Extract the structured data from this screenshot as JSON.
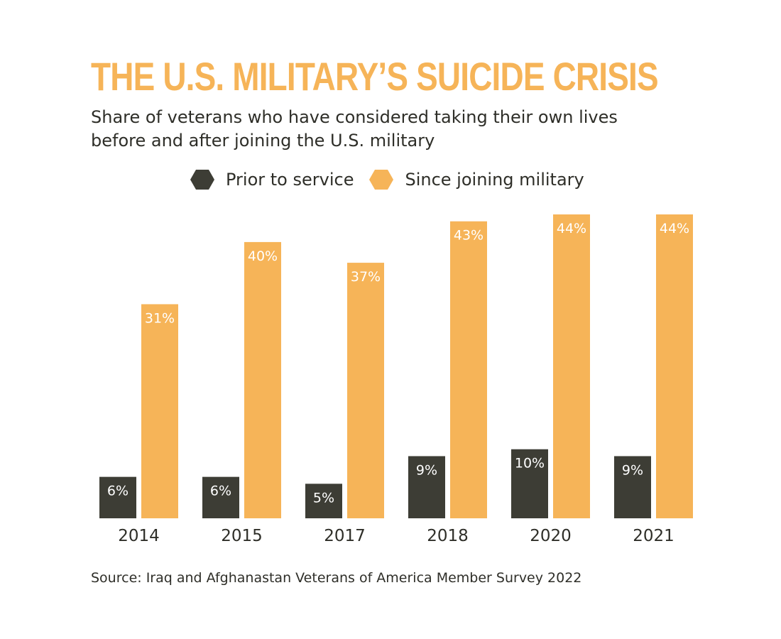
{
  "title": "THE U.S. MILITARY’S SUICIDE CRISIS",
  "subtitle": "Share of veterans who have considered taking their own lives before and after joining the U.S. military",
  "source": "Source: Iraq and Afghanastan Veterans of America Member Survey 2022",
  "colors": {
    "title": "#f6b458",
    "prior": "#3d3d35",
    "since": "#f6b458",
    "text": "#2e2e28",
    "label": "#ffffff"
  },
  "legend": [
    {
      "label": "Prior to service",
      "color": "#3d3d35",
      "icon": "hexagon"
    },
    {
      "label": "Since joining military",
      "color": "#f6b458",
      "icon": "hexagon"
    }
  ],
  "chart_data": {
    "type": "bar",
    "title": "THE U.S. MILITARY’S SUICIDE CRISIS",
    "subtitle": "Share of veterans who have considered taking their own lives before and after joining the U.S. military",
    "categories": [
      "2014",
      "2015",
      "2017",
      "2018",
      "2020",
      "2021"
    ],
    "series": [
      {
        "name": "Prior to service",
        "values": [
          6,
          6,
          5,
          9,
          10,
          9
        ],
        "labels": [
          "6%",
          "6%",
          "5%",
          "9%",
          "10%",
          "9%"
        ]
      },
      {
        "name": "Since joining military",
        "values": [
          31,
          40,
          37,
          43,
          44,
          44
        ],
        "labels": [
          "31%",
          "40%",
          "37%",
          "43%",
          "44%",
          "44%"
        ]
      }
    ],
    "ylim": [
      0,
      44
    ],
    "grid": false,
    "legend_position": "top-center"
  }
}
